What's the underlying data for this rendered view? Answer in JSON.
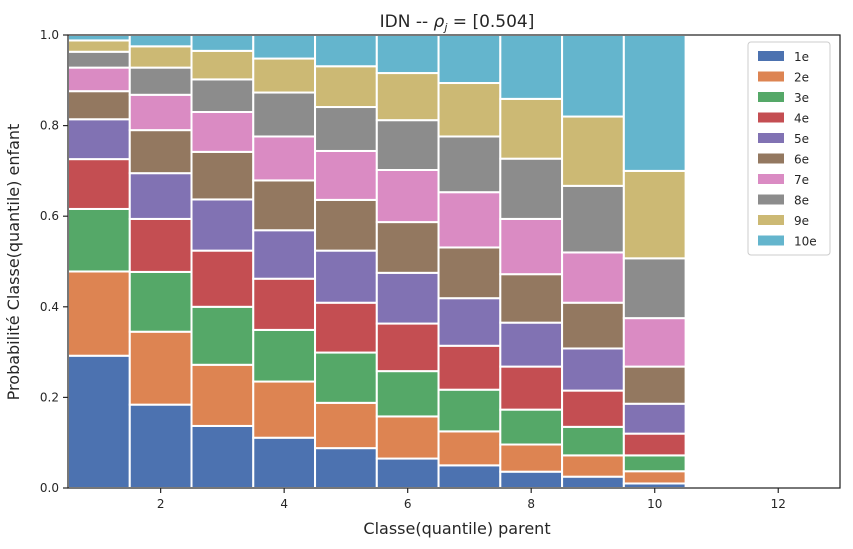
{
  "chart_data": {
    "type": "bar",
    "stacked": true,
    "title": "IDN -- ρ_j = [0.504]",
    "title_parts": {
      "prefix": "IDN -- ",
      "rho": "ρ",
      "sub": "j",
      "suffix": " = [0.504]"
    },
    "xlabel": "Classe(quantile) parent",
    "ylabel": "Probabilité Classe(quantile) enfant",
    "xlim": [
      0.5,
      13
    ],
    "ylim": [
      0,
      1
    ],
    "x_ticks": [
      2,
      4,
      6,
      8,
      10,
      12
    ],
    "y_ticks": [
      0.0,
      0.2,
      0.4,
      0.6,
      0.8,
      1.0
    ],
    "x_tick_labels": [
      "2",
      "4",
      "6",
      "8",
      "10",
      "12"
    ],
    "y_tick_labels": [
      "0.0",
      "0.2",
      "0.4",
      "0.6",
      "0.8",
      "1.0"
    ],
    "legend_position": "top-right",
    "categories": [
      1,
      2,
      3,
      4,
      5,
      6,
      7,
      8,
      9,
      10
    ],
    "series": [
      {
        "name": "1e",
        "color": "#4c72b0",
        "values": [
          0.292,
          0.184,
          0.137,
          0.111,
          0.088,
          0.065,
          0.05,
          0.036,
          0.025,
          0.01
        ]
      },
      {
        "name": "2e",
        "color": "#dd8452",
        "values": [
          0.186,
          0.161,
          0.135,
          0.124,
          0.1,
          0.093,
          0.075,
          0.06,
          0.047,
          0.027
        ]
      },
      {
        "name": "3e",
        "color": "#55a868",
        "values": [
          0.138,
          0.132,
          0.128,
          0.114,
          0.111,
          0.1,
          0.092,
          0.077,
          0.063,
          0.035
        ]
      },
      {
        "name": "4e",
        "color": "#c44e52",
        "values": [
          0.11,
          0.117,
          0.124,
          0.113,
          0.11,
          0.105,
          0.097,
          0.095,
          0.08,
          0.048
        ]
      },
      {
        "name": "5e",
        "color": "#8172b3",
        "values": [
          0.088,
          0.101,
          0.113,
          0.107,
          0.115,
          0.112,
          0.105,
          0.097,
          0.093,
          0.066
        ]
      },
      {
        "name": "6e",
        "color": "#937860",
        "values": [
          0.062,
          0.095,
          0.105,
          0.11,
          0.112,
          0.112,
          0.112,
          0.107,
          0.101,
          0.082
        ]
      },
      {
        "name": "7e",
        "color": "#da8bc3",
        "values": [
          0.052,
          0.078,
          0.088,
          0.097,
          0.108,
          0.115,
          0.122,
          0.122,
          0.111,
          0.107
        ]
      },
      {
        "name": "8e",
        "color": "#8c8c8c",
        "values": [
          0.035,
          0.06,
          0.072,
          0.097,
          0.097,
          0.11,
          0.123,
          0.133,
          0.147,
          0.132
        ]
      },
      {
        "name": "9e",
        "color": "#ccb974",
        "values": [
          0.025,
          0.047,
          0.063,
          0.075,
          0.09,
          0.104,
          0.118,
          0.132,
          0.153,
          0.193
        ]
      },
      {
        "name": "10e",
        "color": "#64b5cd",
        "values": [
          0.012,
          0.025,
          0.035,
          0.052,
          0.069,
          0.084,
          0.106,
          0.141,
          0.18,
          0.3
        ]
      }
    ]
  }
}
